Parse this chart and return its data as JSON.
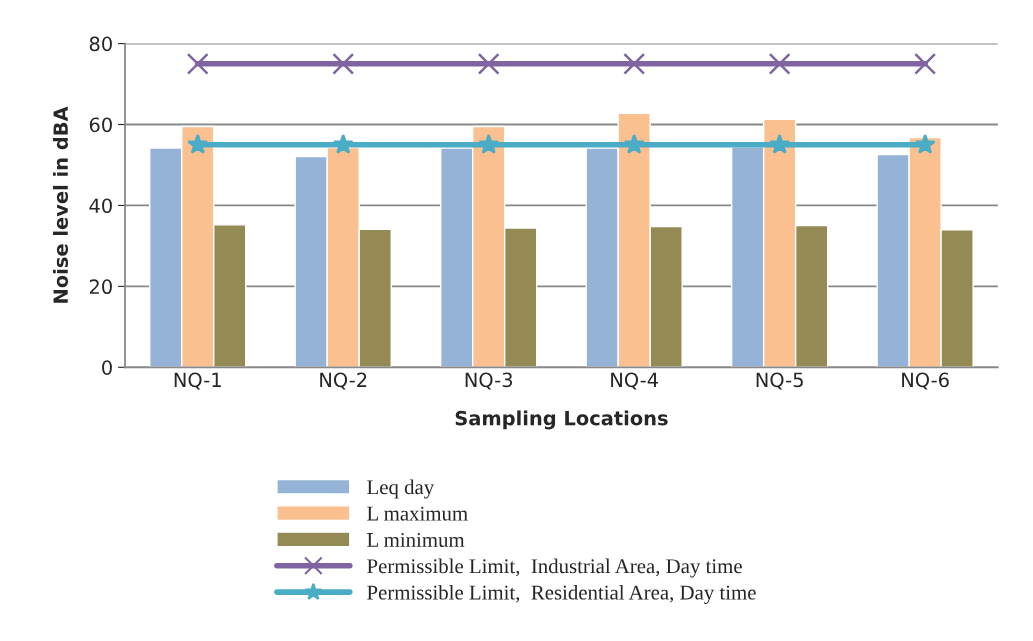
{
  "chart_data": {
    "type": "bar",
    "xlabel": "Sampling Locations",
    "ylabel": "Noise level in dBA",
    "categories": [
      "NQ-1",
      "NQ-2",
      "NQ-3",
      "NQ-4",
      "NQ-5",
      "NQ-6"
    ],
    "series": [
      {
        "name": "Leq day",
        "color": "#95b3d7",
        "values": [
          54.2,
          52.1,
          54.2,
          54.2,
          54.5,
          52.6
        ]
      },
      {
        "name": "L maximum",
        "color": "#fac090",
        "values": [
          59.5,
          54.3,
          59.5,
          62.8,
          61.3,
          56.8
        ]
      },
      {
        "name": "L minimum",
        "color": "#948a54",
        "values": [
          35.2,
          34.1,
          34.4,
          34.8,
          35,
          34.0
        ]
      },
      {
        "name": "Permissible Limit,  Industrial Area, Day time",
        "type": "line",
        "color": "#8064a2",
        "marker": "cross",
        "values": [
          75,
          75,
          75,
          75,
          75,
          75
        ]
      },
      {
        "name": "Permissible Limit,  Residential Area, Day time",
        "type": "line",
        "color": "#4bacc6",
        "marker": "star",
        "values": [
          55,
          55,
          55,
          55,
          55,
          55
        ]
      }
    ],
    "ylim": [
      0,
      80
    ],
    "yticks": [
      0,
      20,
      40,
      60,
      80
    ],
    "grid": "y",
    "legend": "bottom"
  }
}
